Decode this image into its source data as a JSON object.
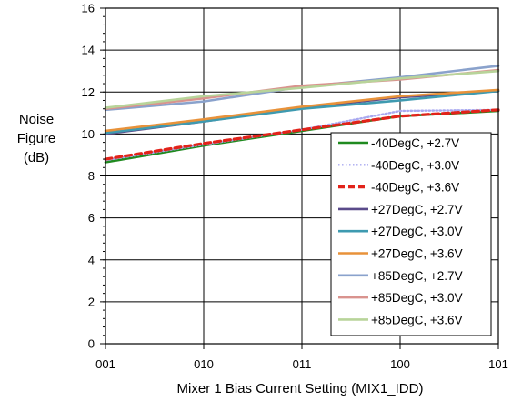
{
  "chart_data": {
    "type": "line",
    "title": "",
    "xlabel": "Mixer 1 Bias Current Setting (MIX1_IDD)",
    "ylabel_lines": [
      "Noise",
      "Figure",
      "(dB)"
    ],
    "categories": [
      "001",
      "010",
      "011",
      "100",
      "101"
    ],
    "ylim": [
      0,
      16
    ],
    "yticks": [
      0,
      2,
      4,
      6,
      8,
      10,
      12,
      14,
      16
    ],
    "grid": true,
    "legend_position": "lower-right",
    "series": [
      {
        "name": "-40DegC, +2.7V",
        "color": "#1f8a1f",
        "dash": "solid",
        "values": [
          8.65,
          9.45,
          10.15,
          10.85,
          11.1
        ]
      },
      {
        "name": "-40DegC, +3.0V",
        "color": "#a9a9f0",
        "dash": "dotted",
        "values": [
          8.75,
          9.5,
          10.2,
          11.1,
          11.15
        ]
      },
      {
        "name": "-40DegC, +3.6V",
        "color": "#e2231a",
        "dash": "dashed",
        "values": [
          8.8,
          9.55,
          10.2,
          10.85,
          11.15
        ]
      },
      {
        "name": "+27DegC, +2.7V",
        "color": "#5a4a8a",
        "dash": "solid",
        "values": [
          10.0,
          10.6,
          11.25,
          11.75,
          12.05
        ]
      },
      {
        "name": "+27DegC, +3.0V",
        "color": "#3e9ab0",
        "dash": "solid",
        "values": [
          10.05,
          10.6,
          11.2,
          11.6,
          12.05
        ]
      },
      {
        "name": "+27DegC, +3.6V",
        "color": "#e8923a",
        "dash": "solid",
        "values": [
          10.15,
          10.7,
          11.3,
          11.8,
          12.1
        ]
      },
      {
        "name": "+85DegC, +2.7V",
        "color": "#8aa2cc",
        "dash": "solid",
        "values": [
          11.15,
          11.55,
          12.25,
          12.7,
          13.25
        ]
      },
      {
        "name": "+85DegC, +3.0V",
        "color": "#d9938e",
        "dash": "solid",
        "values": [
          11.2,
          11.7,
          12.3,
          12.6,
          13.05
        ]
      },
      {
        "name": "+85DegC, +3.6V",
        "color": "#b8d49a",
        "dash": "solid",
        "values": [
          11.25,
          11.8,
          12.2,
          12.65,
          13.0
        ]
      }
    ]
  }
}
